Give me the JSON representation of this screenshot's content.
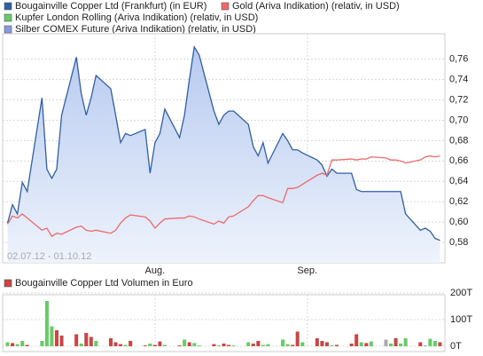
{
  "chart_data": [
    {
      "type": "line",
      "series": [
        {
          "name": "Bougainville Copper Ltd (Frankfurt) (in EUR)",
          "color": "#2f5fa8",
          "area": true,
          "values": [
            0.599,
            0.617,
            0.608,
            0.639,
            0.63,
            0.722,
            0.652,
            0.643,
            0.652,
            0.705,
            0.762,
            0.726,
            0.705,
            0.722,
            0.744,
            0.731,
            0.705,
            0.678,
            0.687,
            0.685,
            0.691,
            0.648,
            0.678,
            0.687,
            0.711,
            0.683,
            0.705,
            0.74,
            0.772,
            0.764,
            0.709,
            0.696,
            0.705,
            0.709,
            0.709,
            0.696,
            0.674,
            0.665,
            0.678,
            0.658,
            0.687,
            0.68,
            0.671,
            0.671,
            0.668,
            0.661,
            0.656,
            0.645,
            0.652,
            0.648,
            0.648,
            0.632,
            0.63,
            0.63,
            0.63,
            0.63,
            0.63,
            0.63,
            0.63,
            0.608,
            0.592,
            0.594,
            0.591,
            0.584,
            0.582
          ]
        },
        {
          "name": "Gold (Ariva Indikation) (relativ, in USD)",
          "color": "#ee6a6a",
          "area": false,
          "values": [
            0.598,
            0.606,
            0.604,
            0.608,
            0.604,
            0.592,
            0.594,
            0.586,
            0.589,
            0.588,
            0.595,
            0.596,
            0.592,
            0.591,
            0.592,
            0.589,
            0.592,
            0.599,
            0.604,
            0.607,
            0.605,
            0.601,
            0.594,
            0.599,
            0.603,
            0.604,
            0.604,
            0.606,
            0.605,
            0.603,
            0.598,
            0.601,
            0.599,
            0.605,
            0.606,
            0.615,
            0.621,
            0.626,
            0.626,
            0.624,
            0.619,
            0.633,
            0.633,
            0.634,
            0.637,
            0.646,
            0.648,
            0.646,
            0.661,
            0.661,
            0.662,
            0.661,
            0.662,
            0.662,
            0.664,
            0.663,
            0.661,
            0.661,
            0.66,
            0.658,
            0.661,
            0.664,
            0.665,
            0.664,
            0.665
          ]
        }
      ],
      "other_series": [
        {
          "name": "Kupfer London Rolling (Ariva Indikation) (relativ, in USD)",
          "color": "#66cc66"
        },
        {
          "name": "Silber COMEX Future (Ariva Indikation) (relativ, in USD)",
          "color": "#8a9ae0"
        }
      ],
      "x": [
        0,
        1,
        2,
        3,
        4,
        7,
        8,
        9,
        10,
        11,
        14,
        15,
        16,
        17,
        18,
        21,
        22,
        23,
        24,
        25,
        28,
        29,
        30,
        31,
        32,
        35,
        36,
        37,
        38,
        39,
        42,
        43,
        44,
        45,
        46,
        49,
        50,
        51,
        52,
        53,
        56,
        57,
        58,
        59,
        60,
        63,
        64,
        65,
        66,
        67,
        70,
        71,
        72,
        73,
        74,
        77,
        78,
        79,
        80,
        81,
        84,
        85,
        86,
        87,
        88
      ],
      "xlim": [
        -1,
        89
      ],
      "xticks": [
        {
          "value": 30,
          "label": "Aug."
        },
        {
          "value": 61,
          "label": "Sep."
        }
      ],
      "ylim": [
        0.56,
        0.785
      ],
      "yticks": [
        {
          "value": 0.58,
          "label": "0,58"
        },
        {
          "value": 0.6,
          "label": "0,60"
        },
        {
          "value": 0.62,
          "label": "0,62"
        },
        {
          "value": 0.64,
          "label": "0,64"
        },
        {
          "value": 0.66,
          "label": "0,66"
        },
        {
          "value": 0.68,
          "label": "0,68"
        },
        {
          "value": 0.7,
          "label": "0,70"
        },
        {
          "value": 0.72,
          "label": "0,72"
        },
        {
          "value": 0.74,
          "label": "0,74"
        },
        {
          "value": 0.76,
          "label": "0,76"
        }
      ],
      "date_range_label": "02.07.12 - 01.10.12",
      "grid": true
    },
    {
      "type": "bar",
      "title": "Bougainville Copper Ltd Volumen in Euro",
      "title_color": "#cc4444",
      "x": [
        0,
        1,
        2,
        3,
        4,
        7,
        8,
        9,
        10,
        11,
        14,
        15,
        16,
        17,
        18,
        21,
        22,
        23,
        24,
        25,
        28,
        29,
        30,
        31,
        32,
        35,
        36,
        37,
        38,
        39,
        42,
        43,
        44,
        45,
        46,
        49,
        50,
        51,
        52,
        53,
        56,
        57,
        58,
        59,
        60,
        63,
        64,
        65,
        66,
        67,
        70,
        71,
        72,
        73,
        74,
        77,
        78,
        79,
        80,
        81,
        84,
        85,
        86,
        87,
        88
      ],
      "values": [
        15,
        12,
        8,
        20,
        5,
        20,
        170,
        75,
        60,
        40,
        45,
        10,
        50,
        35,
        20,
        30,
        15,
        8,
        5,
        20,
        3,
        10,
        5,
        18,
        5,
        3,
        25,
        15,
        12,
        3,
        8,
        3,
        10,
        5,
        3,
        15,
        10,
        20,
        5,
        8,
        25,
        8,
        5,
        55,
        15,
        30,
        20,
        15,
        3,
        5,
        10,
        45,
        15,
        12,
        18,
        25,
        10,
        30,
        10,
        30,
        15,
        3,
        28,
        20,
        15
      ],
      "colors": [
        "#66cc66",
        "#cc4444",
        "#66cc66",
        "#66cc66",
        "#cc4444",
        "#66cc66",
        "#66cc66",
        "#66cc66",
        "#cc4444",
        "#cc4444",
        "#cc4444",
        "#66cc66",
        "#cc4444",
        "#cc4444",
        "#66cc66",
        "#cc4444",
        "#cc4444",
        "#cc4444",
        "#66cc66",
        "#cc4444",
        "#cc4444",
        "#66cc66",
        "#cc4444",
        "#cc4444",
        "#66cc66",
        "#cc4444",
        "#66cc66",
        "#cc4444",
        "#66cc66",
        "#66cc66",
        "#cc4444",
        "#66cc66",
        "#cc4444",
        "#cc4444",
        "#66cc66",
        "#66cc66",
        "#cc4444",
        "#cc4444",
        "#66cc66",
        "#66cc66",
        "#66cc66",
        "#66cc66",
        "#cc4444",
        "#cc4444",
        "#66cc66",
        "#cc4444",
        "#cc4444",
        "#cc4444",
        "#66cc66",
        "#cc4444",
        "#cc4444",
        "#cc4444",
        "#66cc66",
        "#cc4444",
        "#66cc66",
        "#aaaaaa",
        "#66cc66",
        "#cc4444",
        "#66cc66",
        "#66cc66",
        "#cc4444",
        "#66cc66",
        "#66cc66",
        "#66cc66",
        "#cc4444"
      ],
      "xlim": [
        -1,
        89
      ],
      "ylim": [
        0,
        220
      ],
      "yticks": [
        {
          "value": 0,
          "label": "0T"
        },
        {
          "value": 100,
          "label": "100T"
        },
        {
          "value": 200,
          "label": "200T"
        }
      ],
      "grid": true
    }
  ]
}
